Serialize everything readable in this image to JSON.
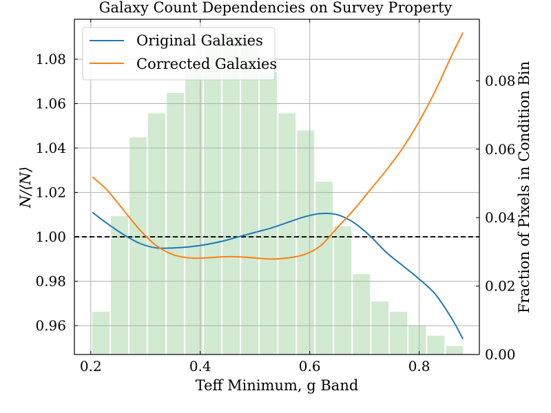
{
  "chart_data": {
    "type": "line",
    "title": "Galaxy Count Dependencies on Survey Property",
    "xlabel": "Teff Minimum, g Band",
    "ylabel": "N/⟨N⟩",
    "ylabel_right": "Fraction of Pixels in Condition Bin",
    "xlim": [
      0.17,
      0.91
    ],
    "ylim": [
      0.947,
      1.098
    ],
    "ylim_right": [
      0.0,
      0.098
    ],
    "x_ticks": [
      0.2,
      0.4,
      0.6,
      0.8
    ],
    "x_tick_labels": [
      "0.2",
      "0.4",
      "0.6",
      "0.8"
    ],
    "y_ticks": [
      0.96,
      0.98,
      1.0,
      1.02,
      1.04,
      1.06,
      1.08
    ],
    "y_tick_labels": [
      "0.96",
      "0.98",
      "1.00",
      "1.02",
      "1.04",
      "1.06",
      "1.08"
    ],
    "y_right_ticks": [
      0.0,
      0.02,
      0.04,
      0.06,
      0.08
    ],
    "y_right_tick_labels": [
      "0.00",
      "0.02",
      "0.04",
      "0.06",
      "0.08"
    ],
    "grid": true,
    "reference_line": 1.0,
    "legend_position": "top-left",
    "series": [
      {
        "name": "Original Galaxies",
        "color": "#1f77b4",
        "x": [
          0.203,
          0.23,
          0.26,
          0.29,
          0.32,
          0.35,
          0.38,
          0.41,
          0.44,
          0.47,
          0.5,
          0.53,
          0.56,
          0.59,
          0.62,
          0.65,
          0.68,
          0.71,
          0.74,
          0.77,
          0.8,
          0.83,
          0.86,
          0.88
        ],
        "y": [
          1.011,
          1.006,
          1.001,
          0.997,
          0.995,
          0.995,
          0.9955,
          0.9965,
          0.998,
          1.0,
          1.002,
          1.004,
          1.0065,
          1.009,
          1.0105,
          1.01,
          1.0065,
          1.0005,
          0.993,
          0.987,
          0.981,
          0.974,
          0.963,
          0.954
        ]
      },
      {
        "name": "Corrected Galaxies",
        "color": "#ff7f0e",
        "x": [
          0.203,
          0.23,
          0.26,
          0.29,
          0.32,
          0.35,
          0.38,
          0.41,
          0.44,
          0.47,
          0.5,
          0.53,
          0.56,
          0.59,
          0.62,
          0.65,
          0.68,
          0.71,
          0.74,
          0.77,
          0.8,
          0.83,
          0.86,
          0.88
        ],
        "y": [
          1.027,
          1.021,
          1.012,
          1.003,
          0.996,
          0.992,
          0.9905,
          0.9905,
          0.991,
          0.991,
          0.9905,
          0.99,
          0.9905,
          0.992,
          0.996,
          1.004,
          1.012,
          1.021,
          1.03,
          1.04,
          1.052,
          1.066,
          1.082,
          1.092
        ]
      }
    ],
    "histogram": {
      "color": "#2ca02c",
      "opacity": 0.22,
      "bin_centers": [
        0.2185,
        0.2525,
        0.2865,
        0.3205,
        0.3545,
        0.3885,
        0.4225,
        0.4565,
        0.4905,
        0.5245,
        0.5585,
        0.5925,
        0.6265,
        0.6605,
        0.6945,
        0.7285,
        0.7625,
        0.7965,
        0.8305,
        0.8645
      ],
      "bin_width": 0.034,
      "fraction": [
        0.0125,
        0.0405,
        0.0635,
        0.0705,
        0.0765,
        0.0835,
        0.0915,
        0.0935,
        0.0925,
        0.0825,
        0.0705,
        0.0655,
        0.0505,
        0.0375,
        0.0235,
        0.0155,
        0.0125,
        0.0085,
        0.0055,
        0.0025
      ]
    }
  }
}
